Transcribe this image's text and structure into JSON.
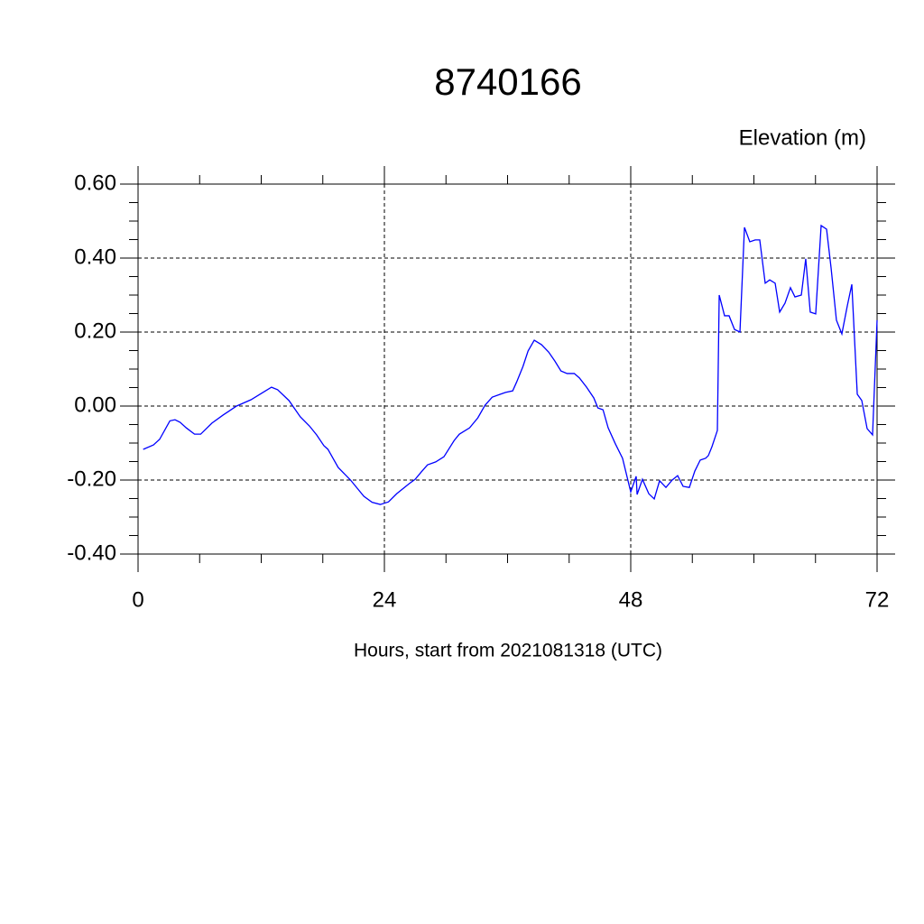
{
  "chart_data": {
    "type": "line",
    "title": "8740166",
    "y_label": "Elevation (m)",
    "x_label": "Hours, start from 2021081318 (UTC)",
    "xlim": [
      0,
      72
    ],
    "xticks": [
      0,
      24,
      48,
      72
    ],
    "ylim": [
      -0.4,
      0.6
    ],
    "yticks": [
      {
        "value": -0.4,
        "label": "-0.40"
      },
      {
        "value": -0.2,
        "label": "-0.20"
      },
      {
        "value": 0,
        "label": "0.00"
      },
      {
        "value": 0.2,
        "label": "0.20"
      },
      {
        "value": 0.4,
        "label": "0.40"
      },
      {
        "value": 0.6,
        "label": "0.60"
      }
    ],
    "grid": true,
    "x": [
      0.5,
      1.5,
      2.1,
      3.1,
      3.6,
      4.1,
      4.7,
      5.5,
      6.1,
      7.2,
      8.3,
      9.6,
      11.0,
      12.0,
      13.0,
      13.6,
      14.7,
      15.8,
      16.7,
      17.4,
      18.1,
      18.5,
      19.5,
      20.7,
      22.0,
      22.8,
      23.6,
      24.4,
      25.2,
      26.4,
      27.0,
      27.6,
      28.2,
      29.0,
      29.8,
      30.8,
      31.3,
      32.3,
      33.1,
      33.8,
      34.5,
      35.3,
      35.8,
      36.5,
      36.9,
      37.5,
      38.0,
      38.6,
      39.3,
      40.0,
      40.6,
      41.2,
      41.8,
      42.5,
      43.0,
      43.7,
      44.4,
      44.8,
      45.3,
      45.8,
      46.5,
      47.2,
      48.0,
      48.53,
      48.62,
      49.14,
      49.76,
      50.29,
      50.81,
      51.43,
      52.04,
      52.57,
      53.1,
      53.71,
      54.24,
      54.77,
      55.3,
      55.56,
      55.91,
      56.44,
      56.62,
      57.14,
      57.58,
      58.11,
      58.64,
      59.08,
      59.6,
      60.13,
      60.57,
      61.1,
      61.54,
      62.07,
      62.51,
      63.03,
      63.56,
      64.0,
      64.62,
      65.05,
      65.49,
      66.02,
      66.55,
      67.08,
      67.52,
      68.04,
      68.57,
      69.1,
      69.54,
      70.07,
      70.51,
      71.03,
      71.56,
      72.0
    ],
    "series": [
      {
        "color": "#0000ff",
        "values": [
          -0.117,
          -0.105,
          -0.09,
          -0.04,
          -0.037,
          -0.044,
          -0.059,
          -0.076,
          -0.076,
          -0.046,
          -0.024,
          0.0,
          0.017,
          0.034,
          0.051,
          0.044,
          0.015,
          -0.029,
          -0.054,
          -0.078,
          -0.107,
          -0.117,
          -0.166,
          -0.2,
          -0.244,
          -0.26,
          -0.266,
          -0.259,
          -0.237,
          -0.21,
          -0.198,
          -0.178,
          -0.159,
          -0.151,
          -0.137,
          -0.093,
          -0.076,
          -0.059,
          -0.032,
          0.002,
          0.024,
          0.032,
          0.037,
          0.041,
          0.066,
          0.107,
          0.149,
          0.178,
          0.166,
          0.146,
          0.122,
          0.095,
          0.088,
          0.088,
          0.076,
          0.051,
          0.022,
          -0.005,
          -0.01,
          -0.059,
          -0.102,
          -0.141,
          -0.232,
          -0.19,
          -0.239,
          -0.198,
          -0.237,
          -0.251,
          -0.202,
          -0.22,
          -0.2,
          -0.188,
          -0.217,
          -0.22,
          -0.176,
          -0.146,
          -0.141,
          -0.134,
          -0.11,
          -0.066,
          0.3,
          0.244,
          0.244,
          0.207,
          0.2,
          0.483,
          0.444,
          0.449,
          0.449,
          0.332,
          0.341,
          0.332,
          0.254,
          0.278,
          0.32,
          0.295,
          0.3,
          0.398,
          0.254,
          0.249,
          0.488,
          0.478,
          0.373,
          0.232,
          0.195,
          0.271,
          0.329,
          0.032,
          0.015,
          -0.061,
          -0.078,
          0.232
        ]
      }
    ]
  }
}
